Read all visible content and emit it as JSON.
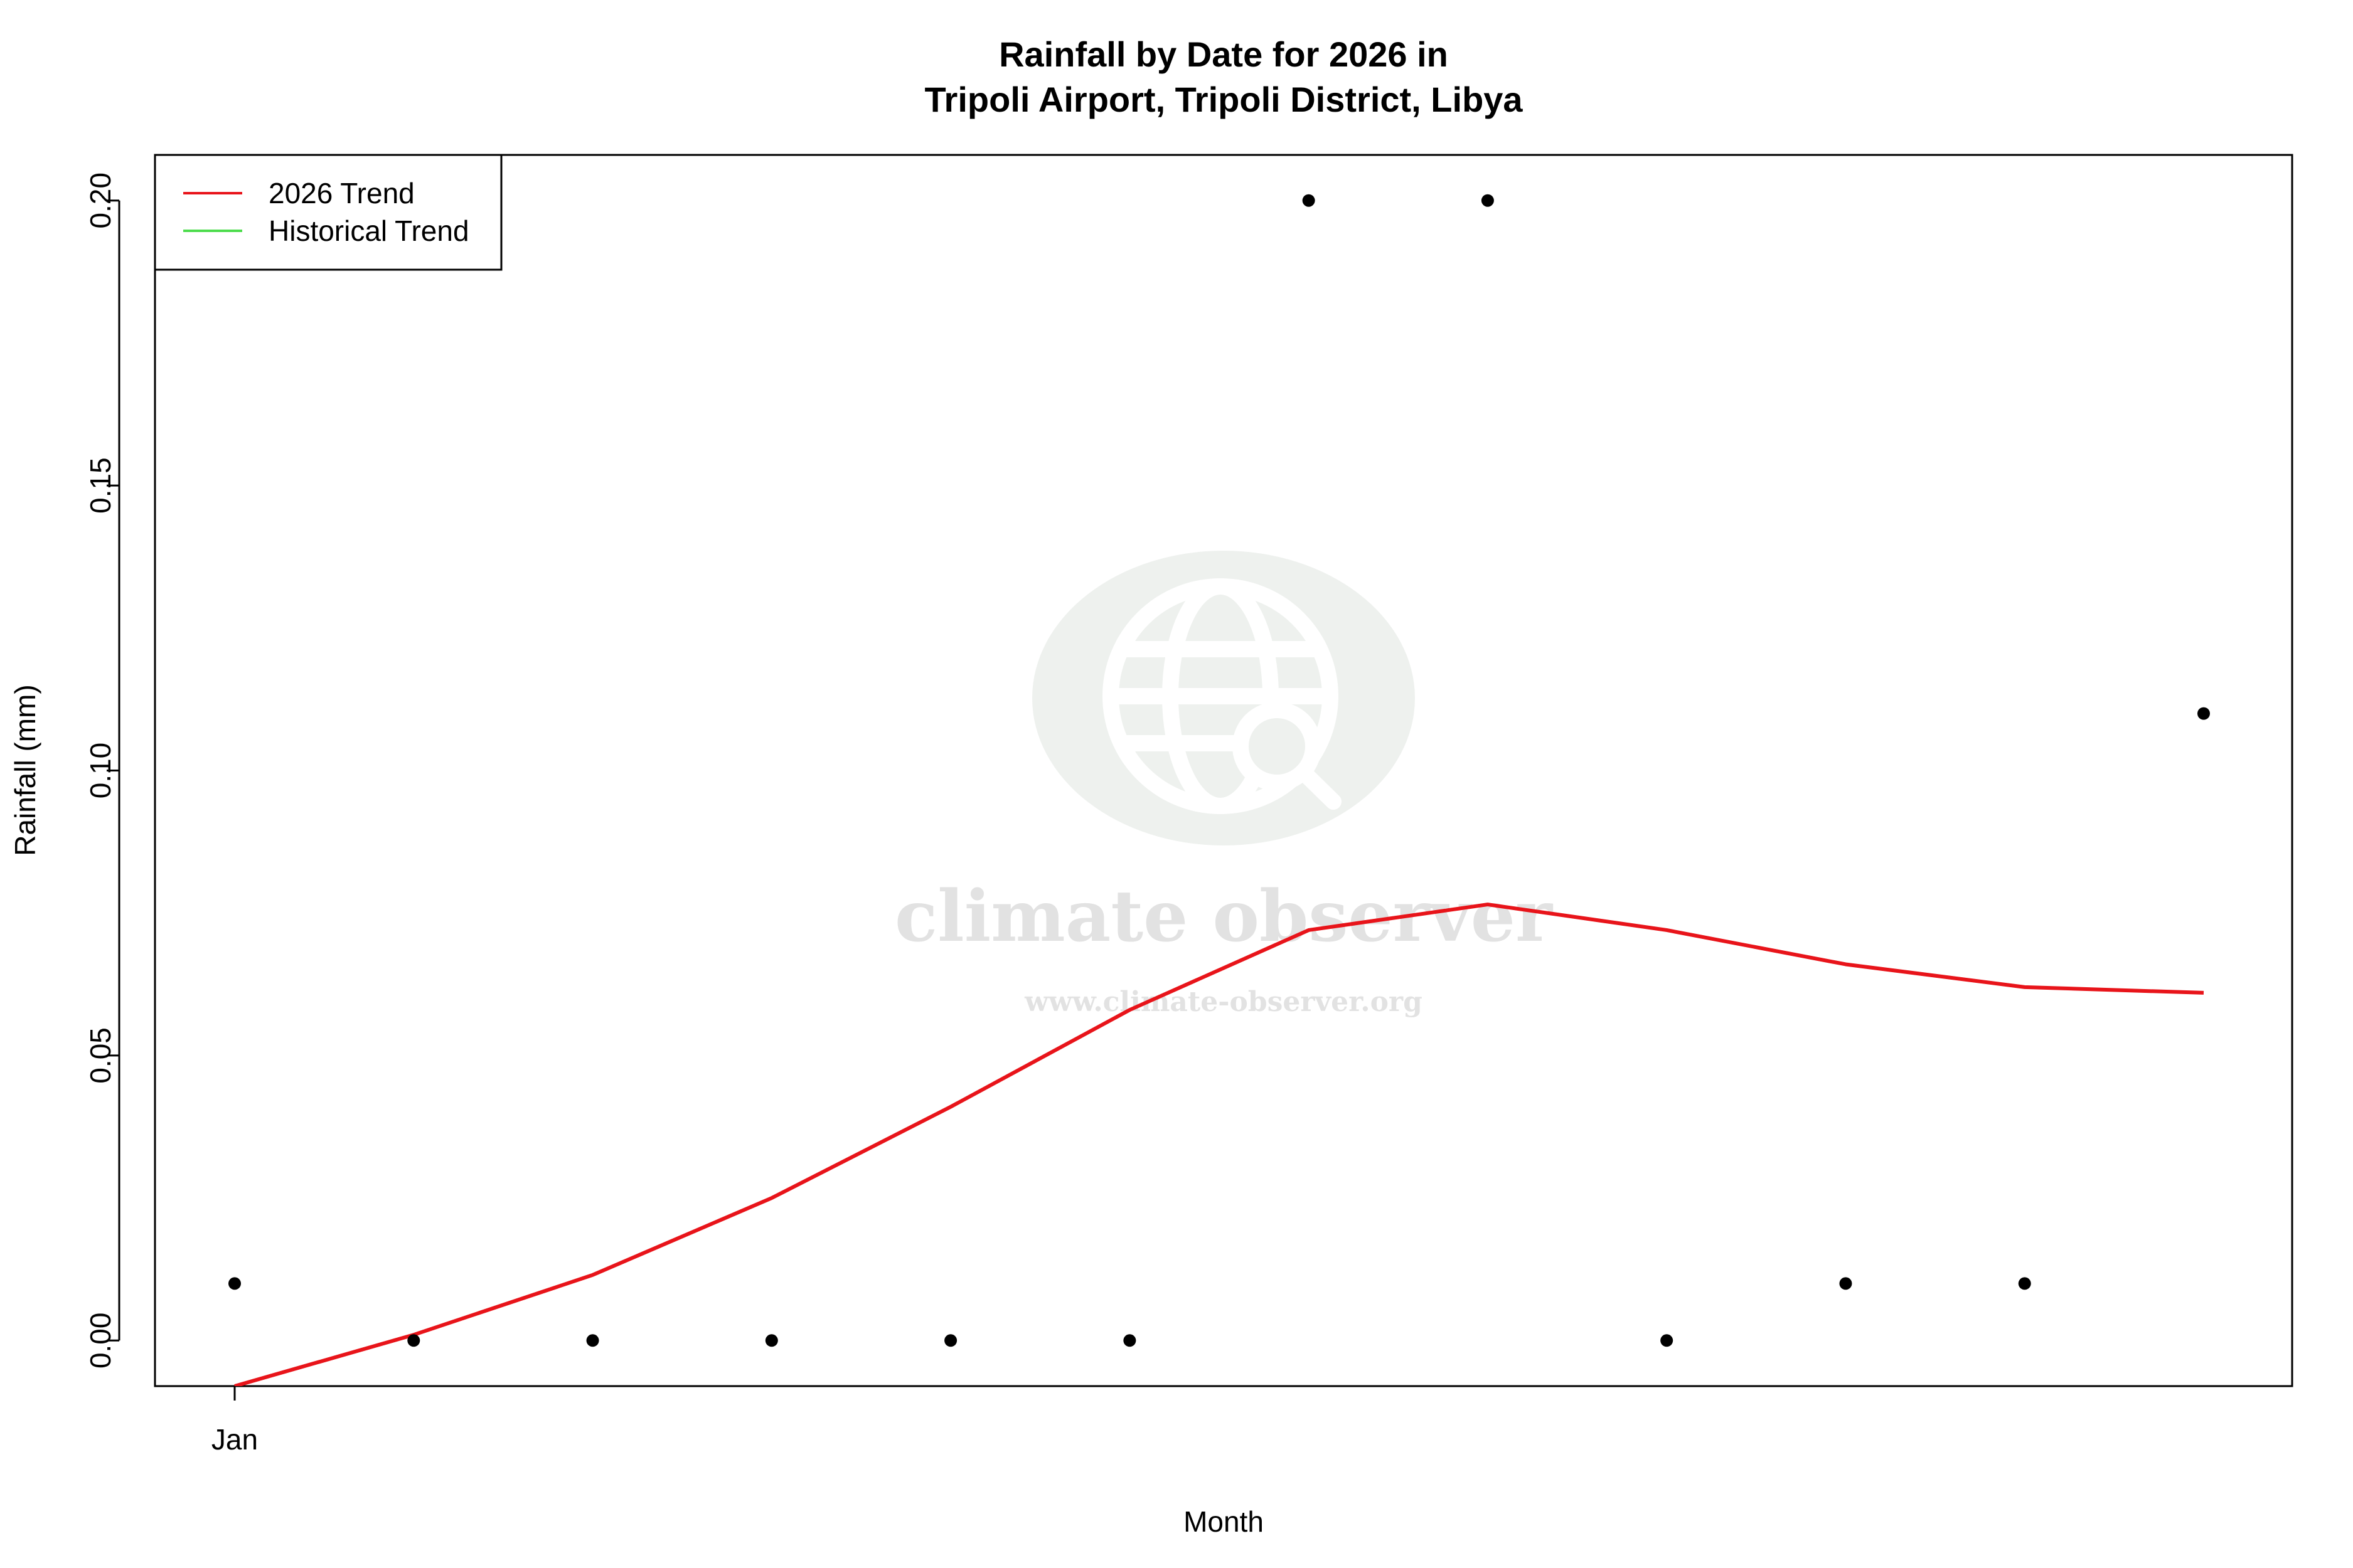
{
  "chart_data": {
    "type": "line",
    "title": "Rainfall by Date for 2026 in",
    "subtitle": "Tripoli Airport, Tripoli District, Libya",
    "xlabel": "Month",
    "ylabel": "Rainfall (mm)",
    "x_tick_labels": [
      "Jan"
    ],
    "y_ticks": [
      "0.00",
      "0.05",
      "0.10",
      "0.15",
      "0.20"
    ],
    "ylim": [
      -0.008,
      0.208
    ],
    "grid": false,
    "legend_position": "top-left",
    "series": [
      {
        "name": "2026 Trend",
        "kind": "line",
        "color": "#e8141a",
        "values": [
          -0.008,
          0.001,
          0.0115,
          0.025,
          0.041,
          0.058,
          0.072,
          0.0765,
          0.072,
          0.066,
          0.062,
          0.061
        ]
      },
      {
        "name": "Historical Trend",
        "kind": "line",
        "color": "#4cdc4c",
        "values": []
      },
      {
        "kind": "points",
        "color": "#000000",
        "values": [
          0.01,
          0.0,
          0.0,
          0.0,
          0.0,
          0.0,
          0.2,
          0.2,
          0.0,
          0.01,
          0.01,
          0.11
        ]
      }
    ]
  },
  "watermark": {
    "name": "climate observer",
    "url": "www.climate-observer.org",
    "icon": "globe-search-icon"
  }
}
